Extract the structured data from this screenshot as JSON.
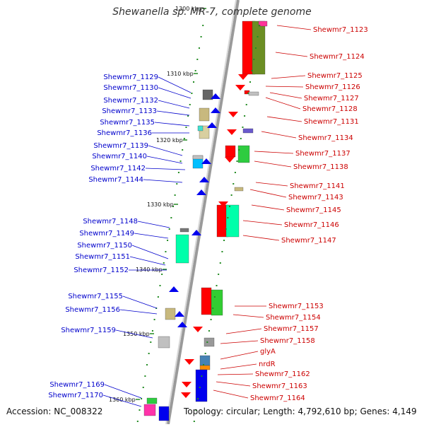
{
  "title": "Shewanella sp. MR-7, complete genome",
  "accession": "Accession: NC_008322",
  "topology": "Topology: circular; Length: 4,792,610 bp; Genes: 4,149",
  "colors": {
    "left_label": "#0000cc",
    "right_label": "#cc0000",
    "strand": "#9a9a9a",
    "tick": "#228b22"
  },
  "kbp_marks": [
    "1300 kbp",
    "1310 kbp",
    "1320 kbp",
    "1330 kbp",
    "1340 kbp",
    "1350 kbp",
    "1360 kbp"
  ],
  "left_genes": [
    "Shewmr7_1129",
    "Shewmr7_1130",
    "Shewmr7_1132",
    "Shewmr7_1133",
    "Shewmr7_1135",
    "Shewmr7_1136",
    "Shewmr7_1139",
    "Shewmr7_1140",
    "Shewmr7_1142",
    "Shewmr7_1144",
    "Shewmr7_1148",
    "Shewmr7_1149",
    "Shewmr7_1150",
    "Shewmr7_1151",
    "Shewmr7_1152",
    "Shewmr7_1155",
    "Shewmr7_1156",
    "Shewmr7_1159",
    "Shewmr7_1169",
    "Shewmr7_1170"
  ],
  "right_genes": [
    "Shewmr7_1123",
    "Shewmr7_1124",
    "Shewmr7_1125",
    "Shewmr7_1126",
    "Shewmr7_1127",
    "Shewmr7_1128",
    "Shewmr7_1131",
    "Shewmr7_1134",
    "Shewmr7_1137",
    "Shewmr7_1138",
    "Shewmr7_1141",
    "Shewmr7_1143",
    "Shewmr7_1145",
    "Shewmr7_1146",
    "Shewmr7_1147",
    "Shewmr7_1153",
    "Shewmr7_1154",
    "Shewmr7_1157",
    "Shewmr7_1158",
    "glyA",
    "nrdR",
    "Shewmr7_1162",
    "Shewmr7_1163",
    "Shewmr7_1164"
  ]
}
